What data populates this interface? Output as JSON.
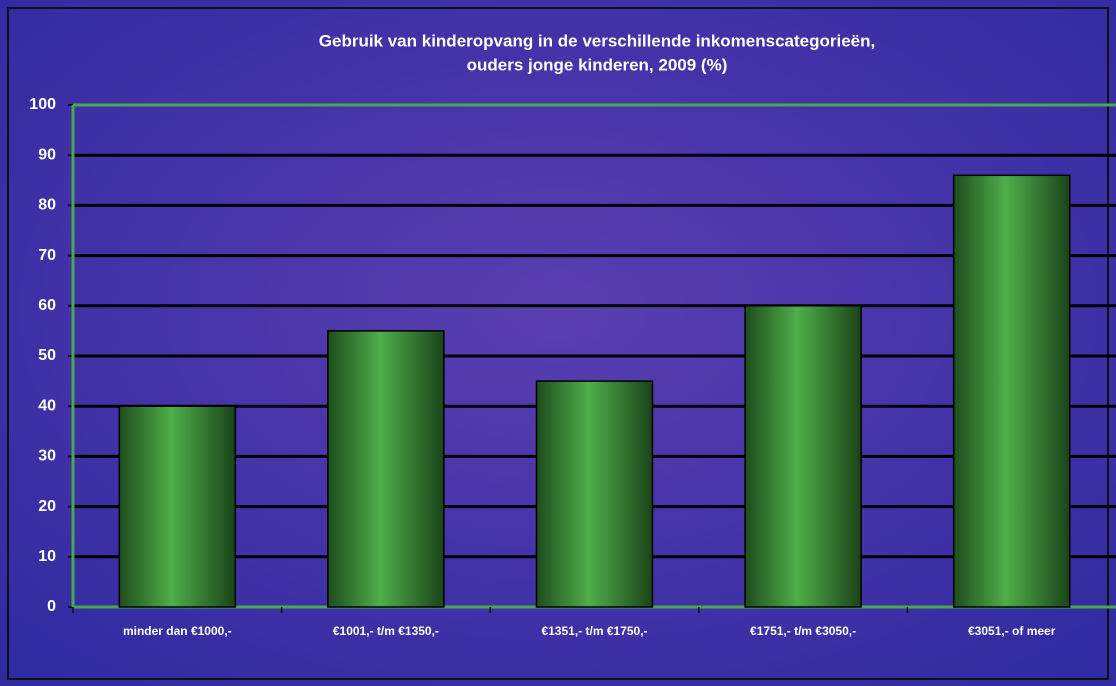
{
  "chart_data": {
    "type": "bar",
    "title": [
      "Gebruik van kinderopvang in de verschillende inkomenscategorieën,",
      "ouders jonge kinderen, 2009 (%)"
    ],
    "categories": [
      "minder dan €1000,-",
      "€1001,- t/m €1350,-",
      "€1351,- t/m €1750,-",
      "€1751,- t/m €3050,-",
      "€3051,- of meer"
    ],
    "values": [
      40,
      55,
      45,
      60,
      86
    ],
    "color": "#3f9a3c",
    "ylim": [
      0,
      100
    ],
    "yticks": [
      0,
      10,
      20,
      30,
      40,
      50,
      60,
      70,
      80,
      90,
      100
    ],
    "grid": true
  }
}
